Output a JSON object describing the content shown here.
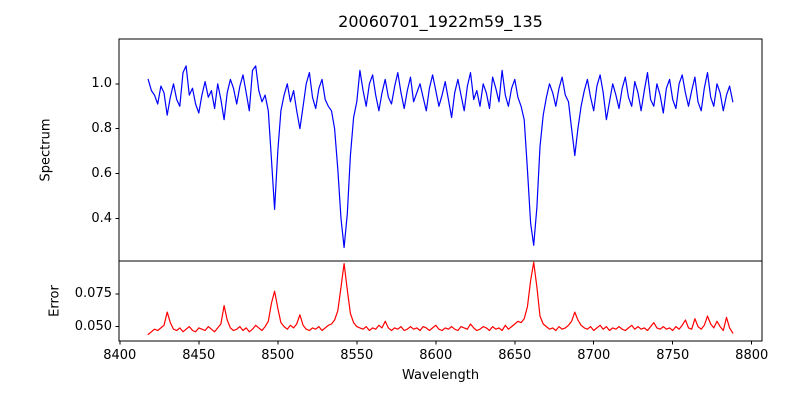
{
  "title": "20060701_1922m59_135",
  "colors": {
    "spectrum_line": "#0000ff",
    "error_line": "#ff0000",
    "axes": "#000000",
    "background": "#ffffff"
  },
  "chart_data": {
    "type": "line",
    "title": "20060701_1922m59_135",
    "xlabel": "Wavelength",
    "xlim": [
      8399.5,
      8806.5
    ],
    "x_ticks": [
      8400,
      8450,
      8500,
      8550,
      8600,
      8650,
      8700,
      8750,
      8800
    ],
    "x_tick_labels": [
      "8400",
      "8450",
      "8500",
      "8550",
      "8600",
      "8650",
      "8700",
      "8750",
      "8800"
    ],
    "x_start": 8418,
    "x_step": 2,
    "grid": false,
    "legend": "none",
    "subplots": [
      {
        "name": "spectrum",
        "ylabel": "Spectrum",
        "ylim": [
          0.21,
          1.2
        ],
        "y_ticks": [
          0.4,
          0.6,
          0.8,
          1.0
        ],
        "y_tick_labels": [
          "0.4",
          "0.6",
          "0.8",
          "1.0"
        ],
        "line_color": "#0000ff",
        "absorption_features": [
          {
            "wavelength": 8498,
            "depth_value": 0.44
          },
          {
            "wavelength": 8542,
            "depth_value": 0.27
          },
          {
            "wavelength": 8662,
            "depth_value": 0.28
          },
          {
            "wavelength": 8688,
            "depth_value": 0.68
          }
        ],
        "values": [
          1.02,
          0.97,
          0.95,
          0.91,
          0.99,
          0.96,
          0.86,
          0.94,
          1.0,
          0.93,
          0.9,
          1.05,
          1.08,
          0.95,
          0.98,
          0.91,
          0.87,
          0.95,
          1.01,
          0.94,
          0.97,
          0.89,
          1.0,
          0.93,
          0.84,
          0.96,
          1.02,
          0.98,
          0.91,
          0.99,
          1.04,
          0.96,
          0.88,
          1.06,
          1.08,
          0.97,
          0.92,
          0.95,
          0.88,
          0.66,
          0.44,
          0.7,
          0.88,
          0.95,
          1.0,
          0.92,
          0.97,
          0.88,
          0.8,
          0.9,
          1.0,
          1.05,
          0.94,
          0.89,
          0.98,
          1.02,
          0.93,
          0.9,
          0.88,
          0.8,
          0.62,
          0.4,
          0.27,
          0.42,
          0.68,
          0.85,
          0.92,
          1.06,
          0.97,
          0.9,
          1.0,
          1.04,
          0.95,
          0.88,
          0.96,
          1.02,
          0.94,
          0.91,
          0.99,
          1.05,
          0.96,
          0.89,
          0.97,
          1.03,
          0.92,
          0.96,
          1.0,
          0.94,
          0.88,
          0.98,
          1.04,
          0.97,
          0.9,
          0.95,
          1.01,
          0.93,
          0.85,
          0.96,
          1.02,
          0.95,
          0.88,
          0.99,
          1.05,
          0.93,
          0.97,
          0.9,
          1.0,
          0.96,
          0.89,
          1.03,
          0.98,
          0.92,
          1.06,
          0.95,
          0.9,
          0.98,
          1.02,
          0.94,
          0.9,
          0.84,
          0.62,
          0.38,
          0.28,
          0.45,
          0.72,
          0.86,
          0.94,
          1.0,
          0.96,
          0.9,
          0.98,
          1.03,
          0.95,
          0.92,
          0.8,
          0.68,
          0.8,
          0.9,
          0.97,
          1.02,
          0.94,
          0.88,
          0.99,
          1.04,
          0.96,
          0.84,
          0.92,
          1.0,
          0.95,
          0.89,
          0.98,
          1.03,
          0.94,
          0.9,
          1.01,
          0.96,
          0.88,
          0.97,
          1.05,
          0.93,
          0.9,
          1.0,
          0.95,
          0.87,
          0.98,
          1.02,
          0.93,
          0.89,
          1.0,
          1.04,
          0.96,
          0.9,
          0.97,
          1.03,
          0.92,
          0.88,
          0.98,
          1.05,
          0.94,
          0.9,
          1.0,
          0.96,
          0.88,
          0.95,
          0.99,
          0.92
        ]
      },
      {
        "name": "error",
        "ylabel": "Error",
        "ylim": [
          0.039,
          0.1
        ],
        "y_ticks": [
          0.05,
          0.075
        ],
        "y_tick_labels": [
          "0.050",
          "0.075"
        ],
        "line_color": "#ff0000",
        "spike_features": [
          {
            "wavelength": 8430,
            "peak_value": 0.061
          },
          {
            "wavelength": 8466,
            "peak_value": 0.066
          },
          {
            "wavelength": 8498,
            "peak_value": 0.077
          },
          {
            "wavelength": 8542,
            "peak_value": 0.098
          },
          {
            "wavelength": 8662,
            "peak_value": 0.099
          },
          {
            "wavelength": 8688,
            "peak_value": 0.061
          }
        ],
        "values": [
          0.044,
          0.046,
          0.048,
          0.047,
          0.049,
          0.051,
          0.061,
          0.053,
          0.048,
          0.047,
          0.049,
          0.046,
          0.048,
          0.05,
          0.047,
          0.046,
          0.049,
          0.048,
          0.047,
          0.05,
          0.048,
          0.046,
          0.049,
          0.052,
          0.066,
          0.055,
          0.049,
          0.047,
          0.048,
          0.05,
          0.047,
          0.049,
          0.046,
          0.048,
          0.051,
          0.049,
          0.047,
          0.05,
          0.054,
          0.068,
          0.077,
          0.064,
          0.053,
          0.05,
          0.048,
          0.051,
          0.049,
          0.052,
          0.059,
          0.051,
          0.048,
          0.047,
          0.049,
          0.048,
          0.05,
          0.047,
          0.049,
          0.051,
          0.052,
          0.055,
          0.062,
          0.08,
          0.098,
          0.078,
          0.06,
          0.053,
          0.05,
          0.049,
          0.048,
          0.05,
          0.047,
          0.049,
          0.048,
          0.051,
          0.049,
          0.054,
          0.049,
          0.047,
          0.049,
          0.048,
          0.05,
          0.047,
          0.048,
          0.05,
          0.048,
          0.049,
          0.047,
          0.05,
          0.049,
          0.047,
          0.049,
          0.051,
          0.048,
          0.047,
          0.049,
          0.048,
          0.05,
          0.048,
          0.047,
          0.05,
          0.049,
          0.048,
          0.052,
          0.049,
          0.047,
          0.048,
          0.05,
          0.049,
          0.047,
          0.05,
          0.048,
          0.049,
          0.047,
          0.051,
          0.048,
          0.05,
          0.052,
          0.054,
          0.053,
          0.056,
          0.065,
          0.085,
          0.099,
          0.08,
          0.058,
          0.052,
          0.05,
          0.048,
          0.049,
          0.047,
          0.05,
          0.048,
          0.049,
          0.051,
          0.054,
          0.061,
          0.055,
          0.051,
          0.049,
          0.048,
          0.05,
          0.047,
          0.049,
          0.051,
          0.048,
          0.05,
          0.047,
          0.049,
          0.048,
          0.05,
          0.048,
          0.047,
          0.049,
          0.051,
          0.048,
          0.05,
          0.048,
          0.049,
          0.047,
          0.05,
          0.053,
          0.049,
          0.048,
          0.05,
          0.048,
          0.049,
          0.047,
          0.05,
          0.048,
          0.051,
          0.055,
          0.049,
          0.048,
          0.056,
          0.05,
          0.048,
          0.051,
          0.058,
          0.052,
          0.049,
          0.054,
          0.05,
          0.047,
          0.057,
          0.049,
          0.045
        ]
      }
    ]
  }
}
